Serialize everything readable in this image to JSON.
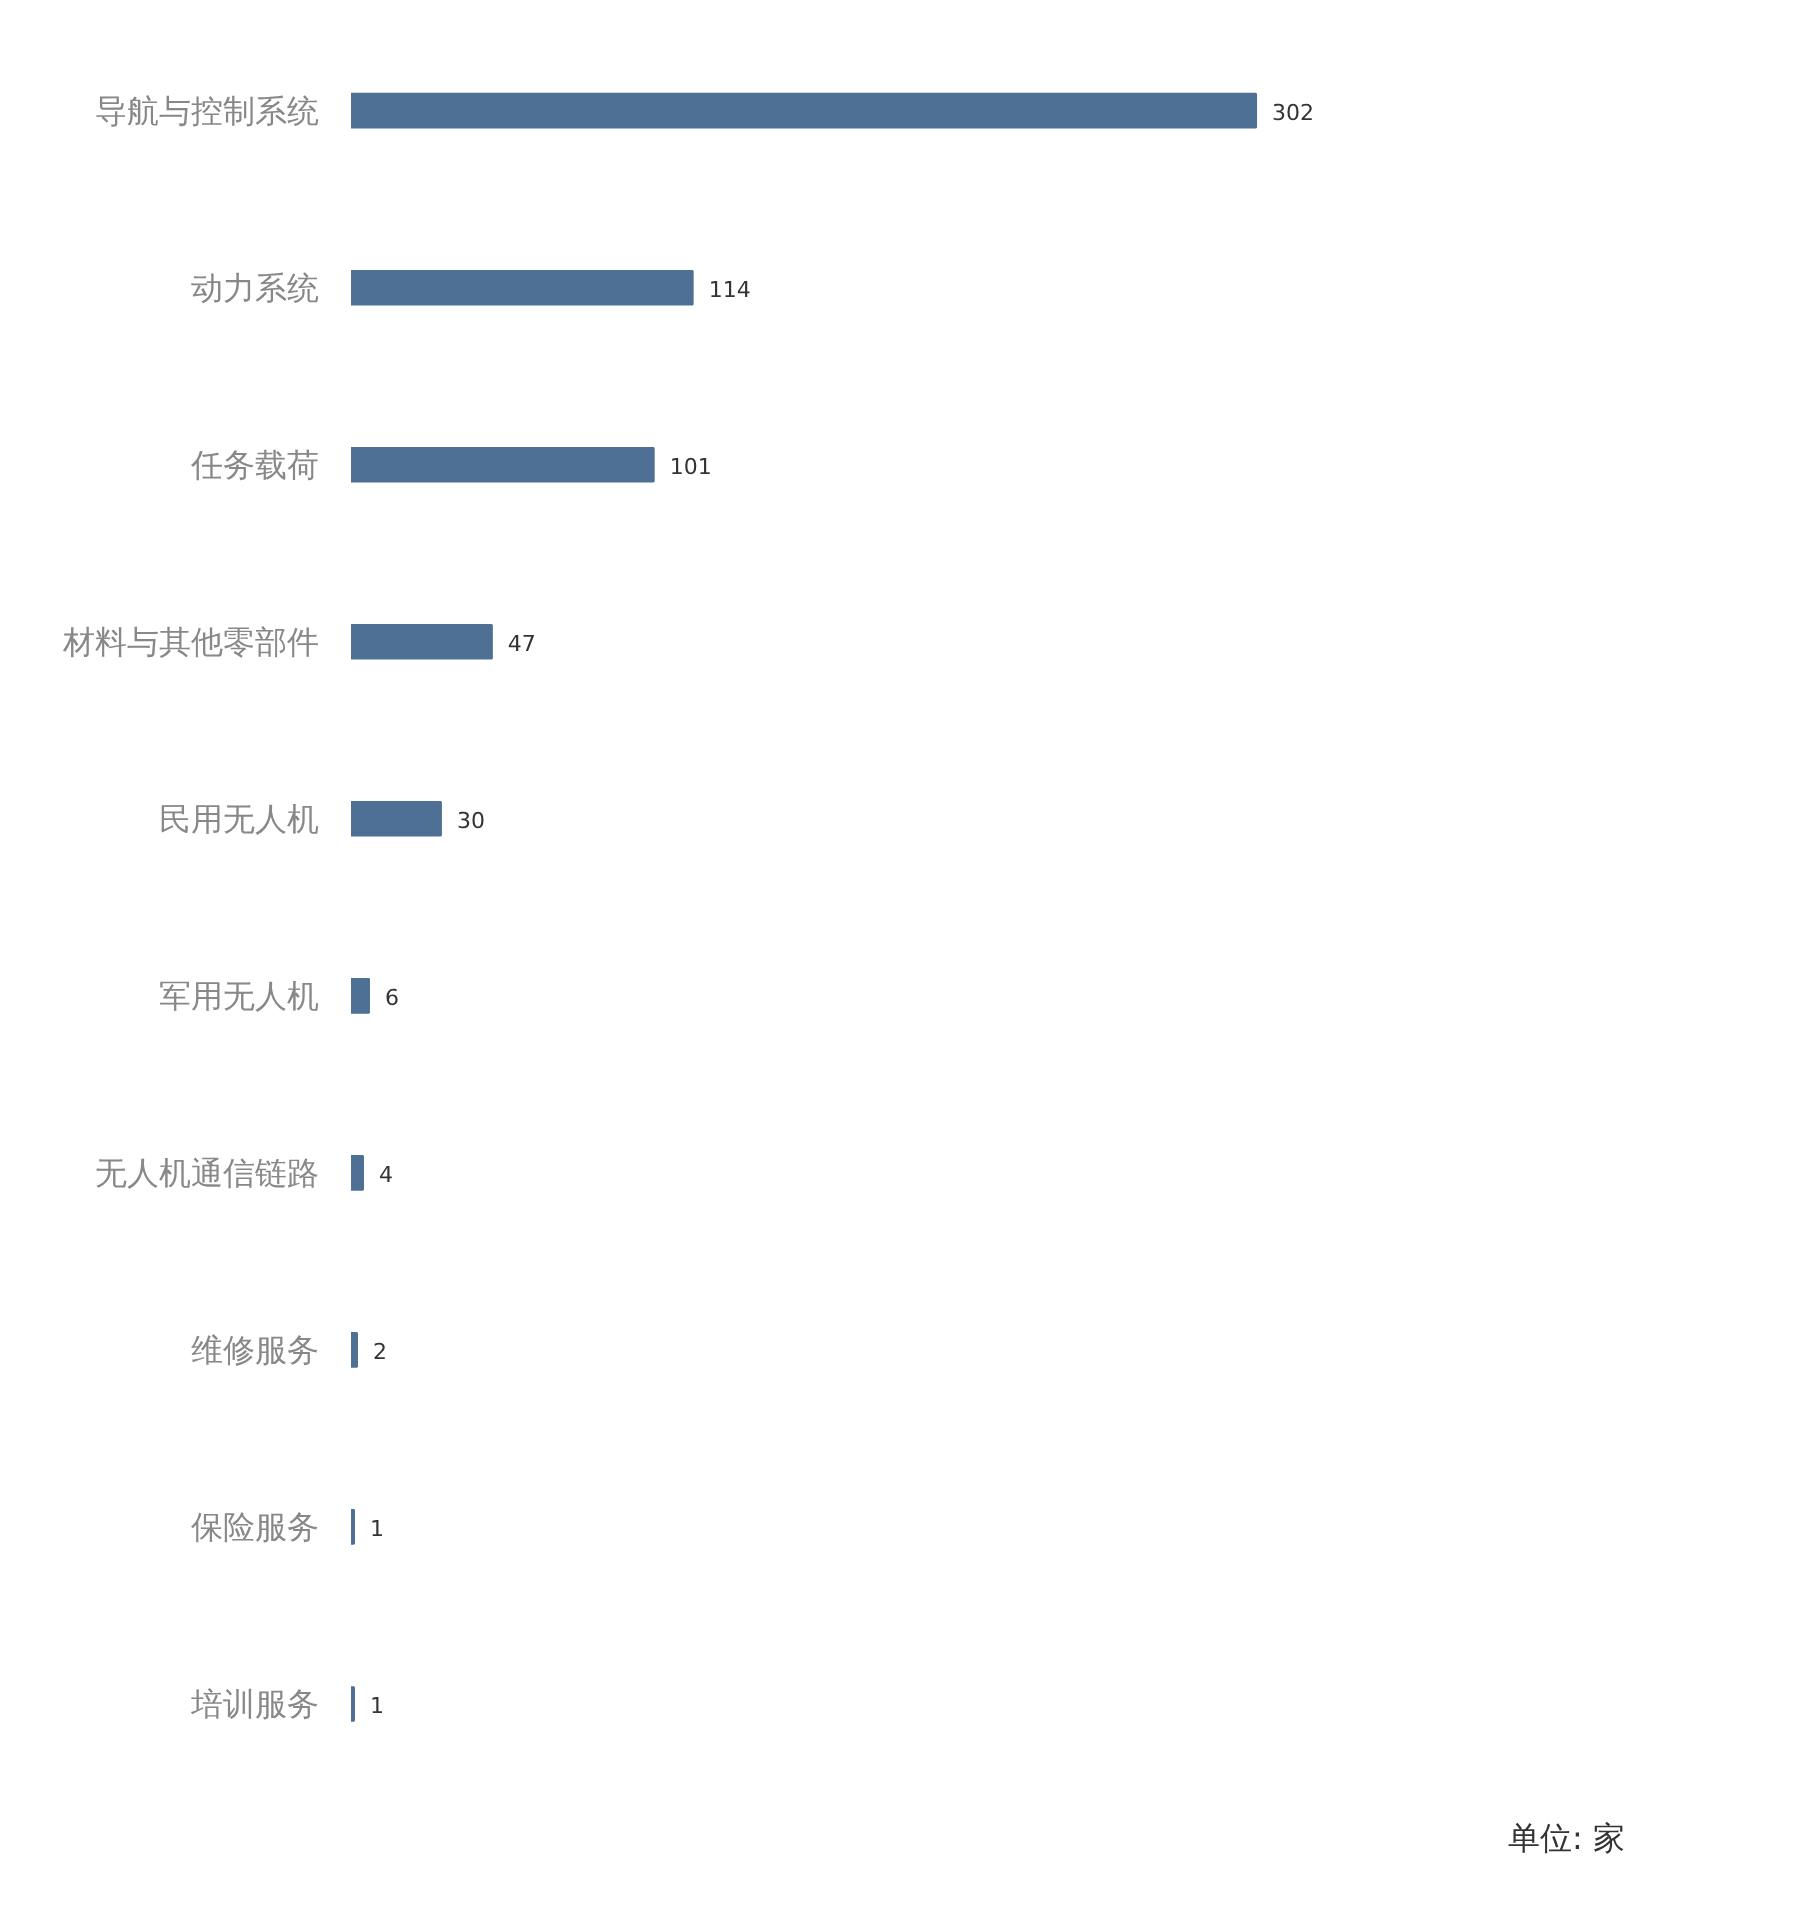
{
  "chart_data": {
    "type": "bar",
    "orientation": "horizontal",
    "categories": [
      "导航与控制系统",
      "动力系统",
      "任务载荷",
      "材料与其他零部件",
      "民用无人机",
      "军用无人机",
      "无人机通信链路",
      "维修服务",
      "保险服务",
      "培训服务"
    ],
    "values": [
      302,
      114,
      101,
      47,
      30,
      6,
      4,
      2,
      1,
      1
    ],
    "color": "#4e7094",
    "data_labels": true,
    "tick_labels": "y",
    "grid": false,
    "annotations": [
      "单位: 家"
    ]
  }
}
